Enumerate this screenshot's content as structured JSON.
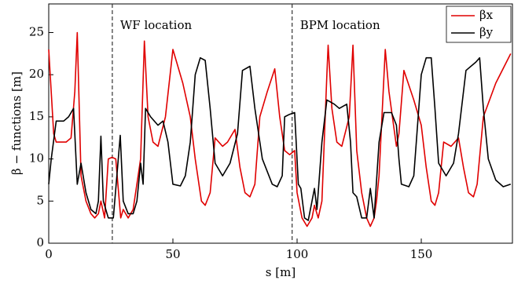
{
  "chart_data": {
    "type": "line",
    "xlabel": "s [m]",
    "ylabel": "β − functions [m]",
    "xlim": [
      0,
      186.7
    ],
    "ylim": [
      0,
      28.4
    ],
    "xticks": [
      0,
      50,
      100,
      150
    ],
    "yticks": [
      0,
      5,
      10,
      15,
      20,
      25
    ],
    "legend": "upper right",
    "annotations": [
      {
        "text": "WF location",
        "x": 25.6
      },
      {
        "text": "BPM location",
        "x": 98
      }
    ],
    "series": [
      {
        "name": "βx",
        "color": "#e00000",
        "x": [
          0,
          2,
          3,
          7,
          9,
          10.5,
          11.5,
          13,
          15,
          17,
          18.5,
          20,
          21,
          22.5,
          24,
          25.5,
          27,
          29,
          30,
          32,
          34,
          37,
          38.5,
          40,
          42,
          44,
          47,
          50,
          54,
          57,
          59,
          61.5,
          63,
          65,
          67,
          70,
          72,
          75,
          77,
          79,
          81,
          83,
          85,
          88,
          91,
          93,
          95,
          97,
          99,
          100,
          102,
          104,
          106,
          107,
          108.5,
          110,
          112,
          112.5,
          114,
          116,
          118,
          121,
          122.5,
          124,
          126,
          128,
          129.5,
          131,
          132,
          133,
          135.5,
          137,
          140,
          141,
          143,
          147,
          150,
          152,
          154,
          155.5,
          157,
          159,
          162,
          165,
          167,
          169,
          171,
          172.5,
          175,
          180,
          186
        ],
        "values": [
          23,
          13,
          12,
          12,
          12.5,
          18,
          25,
          8,
          5,
          3.5,
          3,
          3.5,
          5,
          3,
          10,
          10.2,
          10,
          3,
          4,
          3,
          4,
          10,
          24,
          15,
          12,
          11.5,
          15,
          23,
          19,
          15,
          10,
          5,
          4.5,
          6,
          12.5,
          11.5,
          12,
          13.5,
          9,
          6,
          5.5,
          7,
          15,
          18,
          20.7,
          15,
          11,
          10.5,
          11,
          6,
          3,
          2,
          3,
          4.5,
          3,
          5,
          20,
          23.5,
          16,
          12,
          11.5,
          15,
          23.5,
          11,
          6,
          3,
          2,
          3,
          5,
          8,
          23,
          18,
          11.5,
          13,
          20.5,
          17,
          14,
          9,
          5,
          4.5,
          6,
          12,
          11.5,
          12.5,
          9,
          6,
          5.5,
          7,
          15,
          19,
          22.5
        ]
      },
      {
        "name": "βy",
        "color": "#000000",
        "x": [
          0,
          1,
          3,
          6,
          8,
          10,
          11.5,
          13,
          15,
          17,
          19,
          20,
          21,
          22,
          24,
          26,
          28,
          28.8,
          30,
          32,
          34,
          35.5,
          37,
          38,
          39,
          41,
          44,
          46,
          48,
          50,
          53,
          55,
          57,
          59,
          61,
          63,
          65,
          67,
          70,
          73,
          76,
          78,
          81,
          83,
          86,
          90,
          92,
          94,
          95,
          97,
          99,
          100.5,
          101.5,
          103,
          104.5,
          106,
          107,
          108,
          110,
          112,
          115,
          117,
          120,
          121.5,
          122.5,
          124,
          126,
          128,
          129.5,
          131,
          133,
          135,
          138,
          140,
          141,
          142,
          145,
          147,
          148,
          150,
          152,
          154,
          155.5,
          157,
          160,
          163,
          165,
          168,
          172,
          173.5,
          175,
          177,
          180,
          183,
          186
        ],
        "values": [
          7,
          10,
          14.5,
          14.5,
          15,
          16,
          7,
          9.5,
          6,
          4,
          3.5,
          5,
          12.7,
          5,
          3,
          3,
          10,
          12.8,
          5,
          3.5,
          3.5,
          5,
          9.5,
          7,
          16,
          15,
          14,
          14.5,
          12,
          7,
          6.8,
          8,
          12,
          20,
          22,
          21.7,
          16,
          9.5,
          8,
          9.5,
          13,
          20.5,
          21,
          16,
          10,
          7,
          6.7,
          8,
          15,
          15.3,
          15.5,
          7,
          6.5,
          3,
          2.7,
          5,
          6.5,
          4,
          12,
          17,
          16.5,
          16,
          16.5,
          12,
          6,
          5.5,
          3,
          3,
          6.5,
          3,
          12,
          15.5,
          15.5,
          14,
          10,
          7,
          6.7,
          8,
          12,
          20,
          22,
          22,
          16,
          9.5,
          8,
          9.5,
          13,
          20.5,
          21.5,
          22,
          16,
          10,
          7.5,
          6.7,
          7
        ]
      }
    ]
  }
}
